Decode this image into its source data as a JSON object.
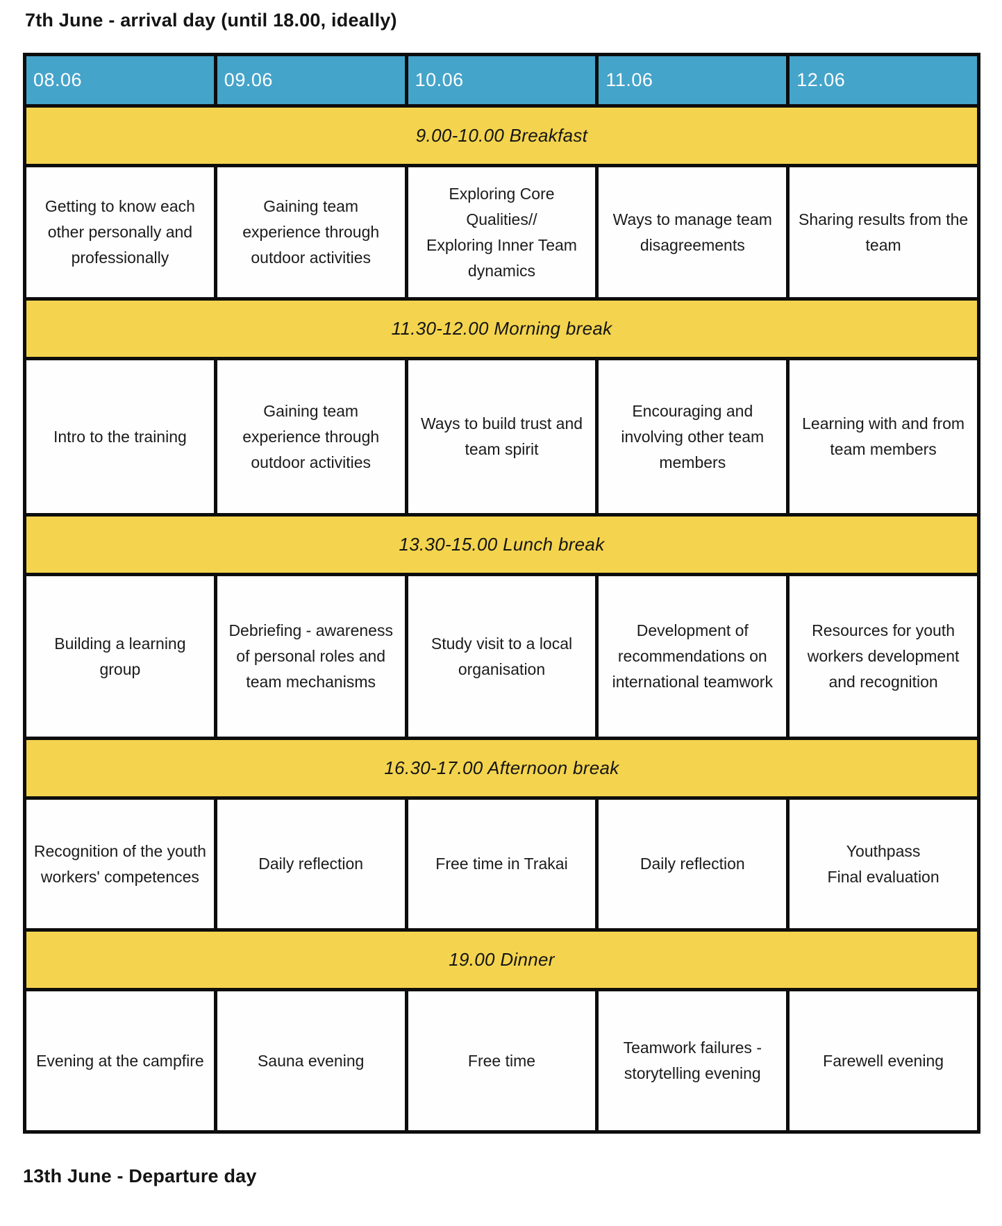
{
  "page": {
    "title_top": "7th June - arrival day (until 18.00, ideally)",
    "title_bottom": "13th June - Departure day"
  },
  "colors": {
    "header_bg": "#45A4CA",
    "band_bg": "#F4D44E",
    "grid": "#0d0d0d",
    "text": "#1b1b1b",
    "header_text": "#ffffff",
    "page_bg": "#ffffff"
  },
  "schedule": {
    "days": [
      "08.06",
      "09.06",
      "10.06",
      "11.06",
      "12.06"
    ],
    "bands": [
      "9.00-10.00 Breakfast",
      "11.30-12.00 Morning break",
      "13.30-15.00 Lunch break",
      "16.30-17.00 Afternoon break",
      "19.00 Dinner"
    ],
    "rows": [
      [
        "Getting to know each other personally and professionally",
        "Gaining team experience through outdoor activities",
        "Exploring Core Qualities//\nExploring Inner Team dynamics",
        "Ways to manage team disagreements",
        "Sharing results from the team"
      ],
      [
        "Intro to the training",
        "Gaining team experience through outdoor activities",
        "Ways to build trust and team spirit",
        "Encouraging and involving other team members",
        "Learning with and from team members"
      ],
      [
        "Building a learning group",
        "Debriefing - awareness of personal roles and team mechanisms",
        "Study visit to a local organisation",
        "Development of recommendations on international teamwork",
        "Resources for youth workers development and recognition"
      ],
      [
        "Recognition of the youth workers' competences",
        "Daily reflection",
        "Free time in Trakai",
        "Daily reflection",
        "Youthpass\nFinal evaluation"
      ],
      [
        "Evening at the campfire",
        "Sauna evening",
        "Free time",
        "Teamwork failures - storytelling evening",
        "Farewell evening"
      ]
    ]
  }
}
